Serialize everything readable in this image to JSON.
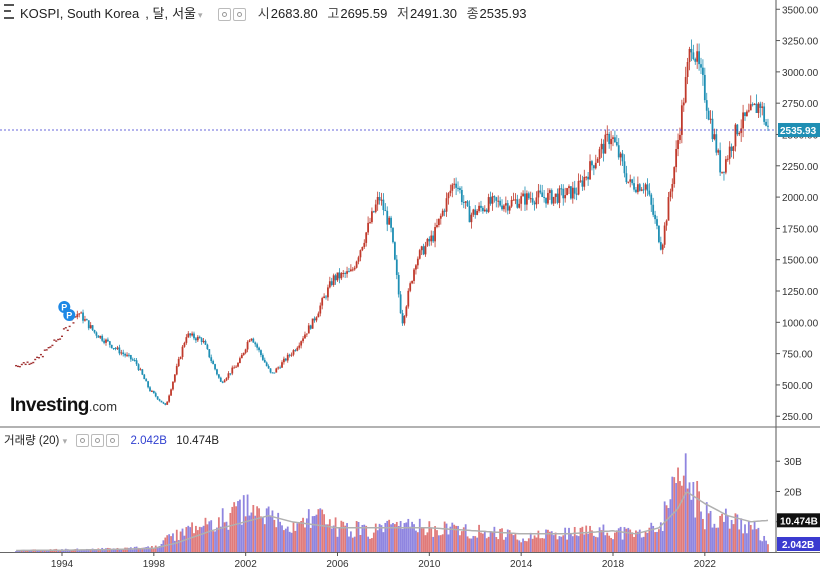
{
  "header": {
    "symbol": "KOSPI, South Korea",
    "interval": "달",
    "exchange": "서울",
    "open_label": "시",
    "open": "2683.80",
    "high_label": "고",
    "high": "2695.59",
    "low_label": "저",
    "low": "2491.30",
    "close_label": "종",
    "close": "2535.93"
  },
  "volume_header": {
    "label": "거래량 (20)",
    "volume": "2.042B",
    "ma": "10.474B"
  },
  "logo": {
    "main": "Investing",
    "suffix": ".com"
  },
  "markers": [
    "P",
    "P"
  ],
  "colors": {
    "up": "#c0392b",
    "down": "#1f8fb4",
    "vol_up": "#e07a7a",
    "vol_down": "#8f85e0",
    "ma": "#b0b0b0",
    "price_line": "#3a3ad0"
  },
  "chart_data": {
    "type": "candlestick",
    "interval": "monthly",
    "price": {
      "x": [
        1992.0,
        1993.0,
        1994.0,
        1994.8,
        1995.5,
        1996.5,
        1997.3,
        1997.9,
        1998.6,
        1999.5,
        2000.2,
        2001.0,
        2001.8,
        2002.3,
        2003.2,
        2004.2,
        2005.0,
        2005.9,
        2006.7,
        2007.5,
        2007.9,
        2008.4,
        2008.9,
        2009.5,
        2010.3,
        2011.2,
        2011.8,
        2012.7,
        2013.5,
        2014.5,
        2015.5,
        2016.5,
        2017.3,
        2018.0,
        2018.8,
        2019.5,
        2020.2,
        2020.8,
        2021.5,
        2022.0,
        2022.8,
        2023.5,
        2024.0,
        2024.5,
        2024.8
      ],
      "y": [
        650,
        700,
        880,
        1080,
        920,
        780,
        680,
        460,
        330,
        900,
        860,
        520,
        680,
        900,
        580,
        780,
        1000,
        1350,
        1400,
        1800,
        2000,
        1750,
        1000,
        1500,
        1700,
        2150,
        1850,
        1950,
        1950,
        2000,
        2000,
        2050,
        2300,
        2500,
        2100,
        2100,
        1600,
        2300,
        3250,
        2900,
        2200,
        2550,
        2650,
        2750,
        2536
      ],
      "ylim": [
        180,
        3550
      ],
      "yticks": [
        "250.00",
        "500.00",
        "750.00",
        "1000.00",
        "1250.00",
        "1500.00",
        "1750.00",
        "2000.00",
        "2250.00",
        "2500.00",
        "2750.00",
        "3000.00",
        "3250.00",
        "3500.00"
      ],
      "last": "2535.93"
    },
    "volume": {
      "x": [
        1992.0,
        1994.0,
        1996.0,
        1998.0,
        1999.0,
        2000.5,
        2002.0,
        2003.0,
        2004.0,
        2005.0,
        2006.0,
        2007.5,
        2008.5,
        2010.0,
        2012.0,
        2014.0,
        2016.0,
        2018.0,
        2019.0,
        2020.0,
        2020.8,
        2021.2,
        2022.0,
        2023.0,
        2024.0,
        2024.8
      ],
      "values": [
        0.5,
        0.8,
        1.0,
        1.5,
        6,
        9,
        14,
        11,
        8,
        12,
        8,
        7,
        8,
        8,
        7,
        5,
        6,
        7,
        6,
        8,
        22,
        25,
        12,
        11,
        9,
        2.04
      ],
      "ma": [
        0.5,
        0.6,
        0.8,
        1.2,
        3,
        7,
        10,
        12,
        10,
        9,
        8,
        8,
        8,
        8,
        7,
        6,
        6,
        7,
        6,
        8,
        14,
        20,
        16,
        12,
        10,
        10.47
      ],
      "ylim": [
        0,
        38
      ],
      "yticks": [
        "10B",
        "20B",
        "30B"
      ],
      "last_volume": "2.042B",
      "last_ma": "10.474B"
    },
    "xticks": [
      "1994",
      "1998",
      "2002",
      "2006",
      "2010",
      "2014",
      "2018",
      "2022"
    ]
  }
}
